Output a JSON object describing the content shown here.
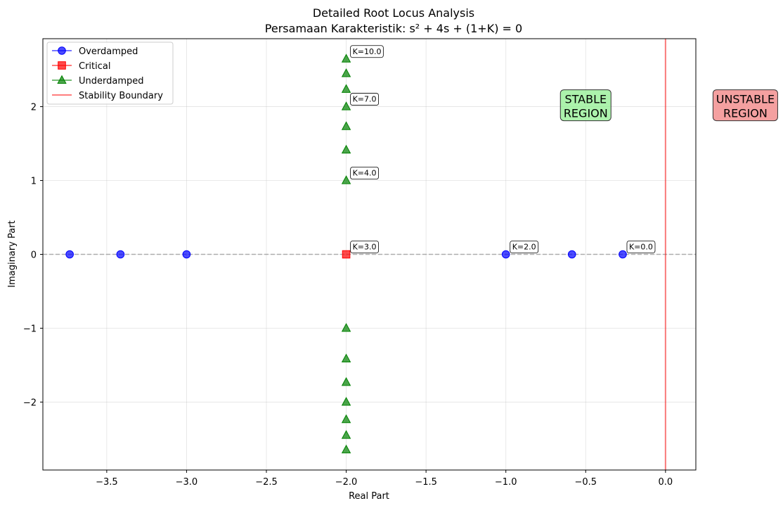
{
  "chart_data": {
    "type": "scatter",
    "title": "Detailed Root Locus Analysis",
    "subtitle": "Persamaan Karakteristik: s² + 4s + (1+K) = 0",
    "xlabel": "Real Part",
    "ylabel": "Imaginary Part",
    "xlim": [
      -3.9,
      0.19
    ],
    "ylim": [
      -2.92,
      2.92
    ],
    "x_ticks": [
      -3.5,
      -3.0,
      -2.5,
      -2.0,
      -1.5,
      -1.0,
      -0.5,
      0.0
    ],
    "x_tick_labels": [
      "−3.5",
      "−3.0",
      "−2.5",
      "−2.0",
      "−1.5",
      "−1.0",
      "−0.5",
      "0.0"
    ],
    "y_ticks": [
      -2,
      -1,
      0,
      1,
      2
    ],
    "y_tick_labels": [
      "−2",
      "−1",
      "0",
      "1",
      "2"
    ],
    "grid": true,
    "legend_position": "top-left",
    "series": [
      {
        "name": "Overdamped",
        "color": "#0000ff",
        "marker": "circle",
        "points": [
          [
            -3.732,
            0
          ],
          [
            -3.414,
            0
          ],
          [
            -3.0,
            0
          ],
          [
            -1.0,
            0
          ],
          [
            -0.586,
            0
          ],
          [
            -0.268,
            0
          ]
        ]
      },
      {
        "name": "Critical",
        "color": "#ff0000",
        "marker": "square",
        "points": [
          [
            -2.0,
            0
          ]
        ]
      },
      {
        "name": "Underdamped",
        "color": "#008000",
        "marker": "triangle",
        "points": [
          [
            -2.0,
            1.0
          ],
          [
            -2.0,
            -1.0
          ],
          [
            -2.0,
            1.414
          ],
          [
            -2.0,
            -1.414
          ],
          [
            -2.0,
            1.732
          ],
          [
            -2.0,
            -1.732
          ],
          [
            -2.0,
            2.0
          ],
          [
            -2.0,
            -2.0
          ],
          [
            -2.0,
            2.236
          ],
          [
            -2.0,
            -2.236
          ],
          [
            -2.0,
            2.449
          ],
          [
            -2.0,
            -2.449
          ],
          [
            -2.0,
            2.646
          ],
          [
            -2.0,
            -2.646
          ]
        ]
      }
    ],
    "stability_boundary": {
      "name": "Stability Boundary",
      "x": 0.0,
      "color": "#ff0000"
    },
    "reference_line": {
      "y": 0.0,
      "style": "dashed",
      "color": "#808080"
    },
    "k_annotations": [
      {
        "label": "K=10.0",
        "x": -2.0,
        "y": 2.646
      },
      {
        "label": "K=7.0",
        "x": -2.0,
        "y": 2.0
      },
      {
        "label": "K=4.0",
        "x": -2.0,
        "y": 1.0
      },
      {
        "label": "K=3.0",
        "x": -2.0,
        "y": 0.0
      },
      {
        "label": "K=2.0",
        "x": -1.0,
        "y": 0.0
      },
      {
        "label": "K=0.0",
        "x": -0.268,
        "y": 0.0
      }
    ],
    "regions": [
      {
        "lines": [
          "STABLE",
          "REGION"
        ],
        "x": -0.5,
        "y": 2.0,
        "color": "#90ee90"
      },
      {
        "lines": [
          "UNSTABLE",
          "REGION"
        ],
        "x": 0.5,
        "y": 2.0,
        "color": "#f08080"
      }
    ]
  }
}
